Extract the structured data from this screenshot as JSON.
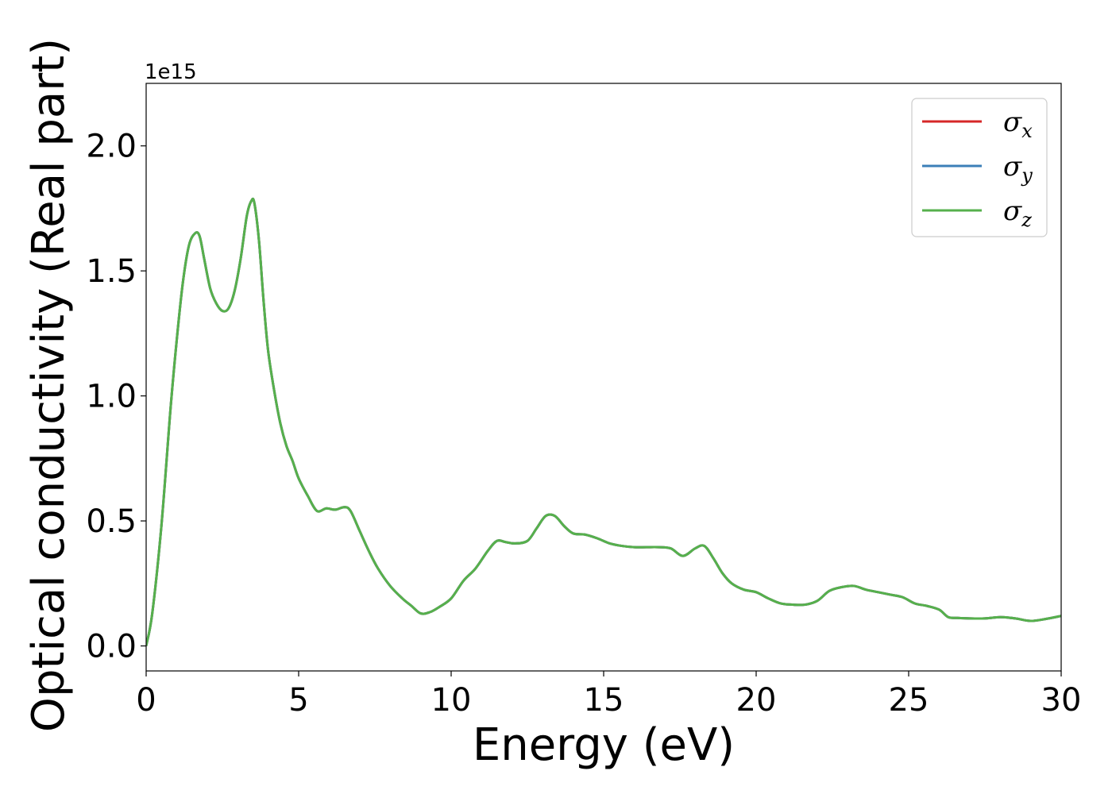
{
  "chart_data": {
    "type": "line",
    "title": "",
    "xlabel": "Energy (eV)",
    "ylabel": "Optical conductivity (Real part)",
    "y_offset_text": "1e15",
    "xlim": [
      0,
      30
    ],
    "ylim": [
      -0.1,
      2.25
    ],
    "xticks": [
      0,
      5,
      10,
      15,
      20,
      25,
      30
    ],
    "xtick_labels": [
      "0",
      "5",
      "10",
      "15",
      "20",
      "25",
      "30"
    ],
    "yticks": [
      0.0,
      0.5,
      1.0,
      1.5,
      2.0
    ],
    "ytick_labels": [
      "0.0",
      "0.5",
      "1.0",
      "1.5",
      "2.0"
    ],
    "grid": false,
    "legend_position": "top-right",
    "colors": {
      "sigma_x": "#d62728",
      "sigma_y": "#3c7fb8",
      "sigma_z": "#56b04c",
      "axis": "#000000",
      "legend_border": "#cccccc"
    },
    "series": [
      {
        "name": "σx",
        "symbol": "σ",
        "subscript": "x",
        "color": "#d62728"
      },
      {
        "name": "σy",
        "symbol": "σ",
        "subscript": "y",
        "color": "#3c7fb8"
      },
      {
        "name": "σz",
        "symbol": "σ",
        "subscript": "z",
        "color": "#56b04c"
      }
    ],
    "x": [
      0,
      0.2,
      0.5,
      0.8,
      1.0,
      1.2,
      1.4,
      1.6,
      1.75,
      1.9,
      2.1,
      2.3,
      2.5,
      2.7,
      2.9,
      3.1,
      3.3,
      3.45,
      3.55,
      3.7,
      3.85,
      4.0,
      4.2,
      4.4,
      4.6,
      4.8,
      5.0,
      5.3,
      5.6,
      5.9,
      6.2,
      6.5,
      6.7,
      7.0,
      7.3,
      7.6,
      8.0,
      8.4,
      8.7,
      9.0,
      9.3,
      9.6,
      10.0,
      10.4,
      10.8,
      11.2,
      11.5,
      11.8,
      12.1,
      12.5,
      12.8,
      13.1,
      13.4,
      13.7,
      14.0,
      14.4,
      14.8,
      15.2,
      15.6,
      16.0,
      16.4,
      16.8,
      17.2,
      17.6,
      18.0,
      18.3,
      18.6,
      18.9,
      19.2,
      19.6,
      20.0,
      20.4,
      20.8,
      21.2,
      21.6,
      22.0,
      22.4,
      22.8,
      23.2,
      23.6,
      24.0,
      24.4,
      24.8,
      25.2,
      25.6,
      26.0,
      26.3,
      26.6,
      27.0,
      27.5,
      28.0,
      28.5,
      29.0,
      29.5,
      30.0
    ],
    "values": [
      0.0,
      0.13,
      0.48,
      0.95,
      1.22,
      1.45,
      1.6,
      1.65,
      1.64,
      1.55,
      1.43,
      1.37,
      1.34,
      1.35,
      1.42,
      1.55,
      1.72,
      1.78,
      1.77,
      1.62,
      1.38,
      1.18,
      1.02,
      0.89,
      0.8,
      0.74,
      0.67,
      0.6,
      0.54,
      0.55,
      0.545,
      0.555,
      0.54,
      0.46,
      0.38,
      0.31,
      0.24,
      0.19,
      0.16,
      0.13,
      0.135,
      0.155,
      0.19,
      0.26,
      0.31,
      0.38,
      0.42,
      0.415,
      0.41,
      0.42,
      0.47,
      0.52,
      0.52,
      0.48,
      0.45,
      0.445,
      0.43,
      0.41,
      0.4,
      0.395,
      0.395,
      0.395,
      0.39,
      0.36,
      0.39,
      0.4,
      0.35,
      0.29,
      0.25,
      0.225,
      0.215,
      0.19,
      0.17,
      0.165,
      0.165,
      0.18,
      0.22,
      0.235,
      0.24,
      0.225,
      0.215,
      0.205,
      0.195,
      0.17,
      0.16,
      0.145,
      0.115,
      0.112,
      0.11,
      0.11,
      0.115,
      0.11,
      0.1,
      0.108,
      0.12
    ]
  }
}
